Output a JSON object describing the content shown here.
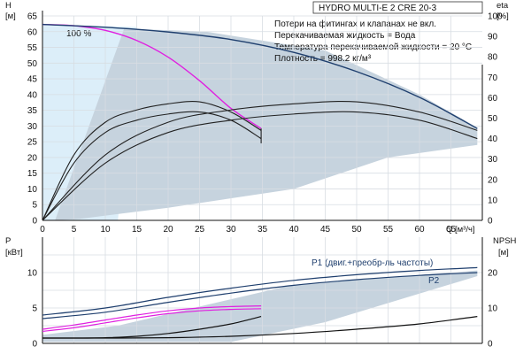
{
  "chart_data": [
    {
      "type": "line",
      "title": "HYDRO MULTI-E 2 CRE 20-3",
      "notes": [
        "Потери на фитингах и клапанах не вкл.",
        "Перекачиваемая жидкость = Вода",
        "Температура перекачиваемой жидкости = 20 °C",
        "Плотность = 998.2 кг/м³"
      ],
      "y_axis_left": {
        "label": "H",
        "unit": "[м]",
        "range": [
          0,
          65
        ],
        "ticks": [
          0,
          5,
          10,
          15,
          20,
          25,
          30,
          35,
          40,
          45,
          50,
          55,
          60,
          65
        ]
      },
      "y_axis_right": {
        "label": "eta",
        "unit": "[%]",
        "range": [
          0,
          100
        ],
        "ticks": [
          0,
          10,
          20,
          30,
          40,
          50,
          60,
          70,
          80,
          90,
          100
        ]
      },
      "x_axis": {
        "label": "Q",
        "unit": "[м³/ч]",
        "range": [
          0,
          70
        ],
        "ticks": [
          0,
          5,
          10,
          15,
          20,
          25,
          30,
          35,
          40,
          45,
          50,
          55,
          60,
          65
        ]
      },
      "annotations": [
        {
          "text": "100 %",
          "x": 6.5,
          "y": 63.5
        }
      ],
      "grid": true,
      "series": [
        {
          "role": "head-100-percent-single",
          "color": "#e020e0",
          "x": [
            0,
            5,
            10,
            15,
            20,
            25,
            30,
            34.8
          ],
          "y": [
            62.3,
            61.9,
            60.4,
            57.2,
            51.9,
            44.4,
            35.6,
            29.2
          ]
        },
        {
          "role": "head-max-parallel",
          "color": "#1f3f6e",
          "x": [
            0,
            10,
            20,
            30,
            40,
            50,
            60,
            69.2
          ],
          "y": [
            62.3,
            61.4,
            59.9,
            57.5,
            53.4,
            47.3,
            39.1,
            29.2
          ]
        },
        {
          "role": "eta-single-upper",
          "color": "#222222",
          "x": [
            0,
            5,
            10,
            15,
            20,
            25,
            30,
            34.8
          ],
          "y": [
            0,
            32,
            48,
            54,
            57,
            58,
            53,
            44
          ]
        },
        {
          "role": "eta-single-lower",
          "color": "#222222",
          "x": [
            0,
            5,
            10,
            15,
            20,
            25,
            30,
            34.8
          ],
          "y": [
            0,
            28,
            43,
            49,
            52,
            53,
            49,
            40
          ]
        },
        {
          "role": "eta-parallel-upper",
          "color": "#222222",
          "x": [
            0,
            10,
            20,
            30,
            40,
            50,
            60,
            69.2
          ],
          "y": [
            0,
            32,
            48,
            54,
            57,
            58,
            53,
            44
          ]
        },
        {
          "role": "eta-parallel-lower",
          "color": "#222222",
          "x": [
            0,
            10,
            20,
            30,
            40,
            50,
            60,
            69.2
          ],
          "y": [
            0,
            28,
            43,
            49,
            52,
            53,
            49,
            40
          ]
        }
      ]
    },
    {
      "type": "line",
      "y_axis_left": {
        "label": "P",
        "unit": "[кВт]",
        "range": [
          0,
          15
        ],
        "ticks": [
          0,
          5,
          10
        ]
      },
      "y_axis_right": {
        "label": "NPSH",
        "unit": "[м]",
        "range": [
          0,
          30
        ],
        "ticks": [
          0,
          10,
          20
        ]
      },
      "x_axis": {
        "range": [
          0,
          70
        ]
      },
      "grid": true,
      "series": [
        {
          "name": "P1 (двиг.+преобр-ль частоты)",
          "color": "#1f3f6e",
          "x": [
            0,
            10,
            20,
            30,
            40,
            50,
            60,
            69.2
          ],
          "y": [
            4.0,
            5.0,
            6.5,
            7.8,
            8.9,
            9.7,
            10.3,
            10.7
          ]
        },
        {
          "name": "P2",
          "color": "#1f3f6e",
          "x": [
            0,
            10,
            20,
            30,
            40,
            50,
            60,
            69.2
          ],
          "y": [
            3.5,
            4.4,
            5.8,
            7.1,
            8.2,
            9.0,
            9.6,
            10.0
          ]
        },
        {
          "role": "p1-single",
          "color": "#e020e0",
          "x": [
            0,
            5,
            10,
            15,
            20,
            25,
            30,
            34.8
          ],
          "y": [
            2.0,
            2.6,
            3.3,
            4.0,
            4.6,
            5.0,
            5.2,
            5.3
          ]
        },
        {
          "role": "p2-single",
          "color": "#e020e0",
          "x": [
            0,
            5,
            10,
            15,
            20,
            25,
            30,
            34.8
          ],
          "y": [
            1.7,
            2.2,
            2.9,
            3.6,
            4.2,
            4.6,
            4.8,
            4.9
          ]
        },
        {
          "role": "npsh-single",
          "color": "#111111",
          "x": [
            0,
            5,
            10,
            15,
            20,
            25,
            30,
            34.8
          ],
          "y": [
            1.5,
            1.5,
            1.6,
            2.0,
            2.8,
            4.0,
            5.5,
            7.6
          ]
        },
        {
          "role": "npsh-parallel",
          "color": "#111111",
          "x": [
            0,
            10,
            20,
            30,
            40,
            50,
            60,
            69.2
          ],
          "y": [
            1.5,
            1.5,
            1.6,
            2.0,
            2.8,
            4.0,
            5.5,
            7.6
          ]
        }
      ]
    }
  ]
}
